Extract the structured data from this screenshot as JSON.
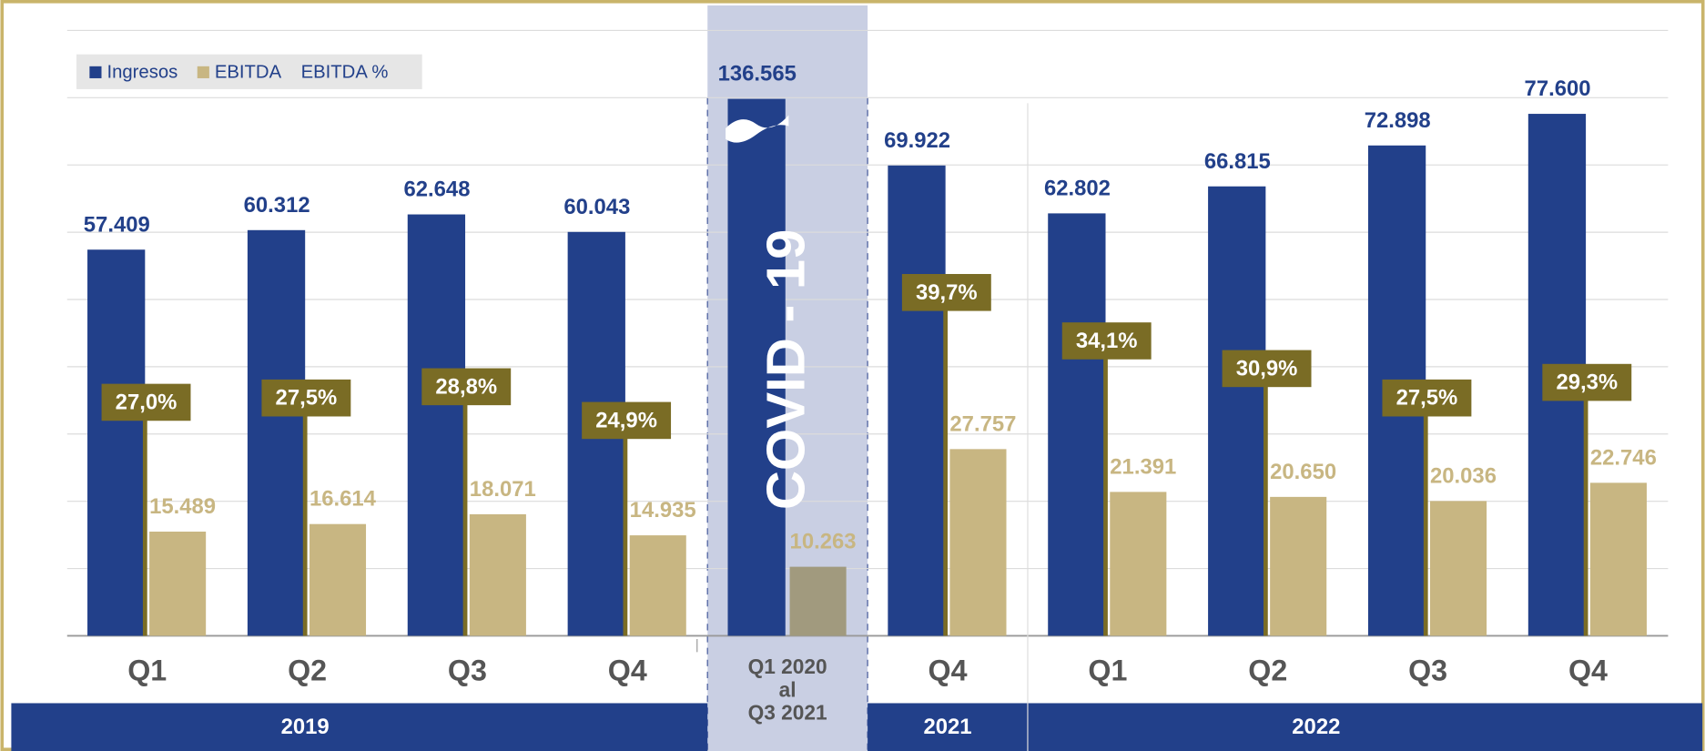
{
  "chart_data": {
    "type": "bar",
    "categories": [
      "Q1",
      "Q2",
      "Q3",
      "Q4",
      "Q1 2020\nal\nQ3 2021",
      "Q4",
      "Q1",
      "Q2",
      "Q3",
      "Q4"
    ],
    "groups": [
      {
        "label": "2019",
        "start": 0,
        "end": 3
      },
      {
        "label": "2021",
        "start": 5,
        "end": 5
      },
      {
        "label": "2022",
        "start": 6,
        "end": 9
      }
    ],
    "highlight": {
      "index": 4,
      "annotation": "COVID - 19",
      "color": "#c9cfe3"
    },
    "series": [
      {
        "name": "Ingresos",
        "color": "#22408a",
        "values": [
          57409,
          60312,
          62648,
          60043,
          136565,
          69922,
          62802,
          66815,
          72898,
          77600
        ],
        "value_labels": [
          "57.409",
          "60.312",
          "62.648",
          "60.043",
          "136.565",
          "69.922",
          "62.802",
          "66.815",
          "72.898",
          "77.600"
        ]
      },
      {
        "name": "EBITDA",
        "color": "#c8b682",
        "values": [
          15489,
          16614,
          18071,
          14935,
          10263,
          27757,
          21391,
          20650,
          20036,
          22746
        ],
        "value_labels": [
          "15.489",
          "16.614",
          "18.071",
          "14.935",
          "10.263",
          "27.757",
          "21.391",
          "20.650",
          "20.036",
          "22.746"
        ]
      },
      {
        "name": "EBITDA %",
        "color": "#7a6c25",
        "axis": "y2",
        "values": [
          27.0,
          27.5,
          28.8,
          24.9,
          null,
          39.7,
          34.1,
          30.9,
          27.5,
          29.3
        ],
        "value_labels": [
          "27,0%",
          "27,5%",
          "28,8%",
          "24,9%",
          null,
          "39,7%",
          "34,1%",
          "30,9%",
          "27,5%",
          "29,3%"
        ]
      }
    ],
    "ylim": [
      0,
      90000
    ],
    "yticks": [
      0,
      10000,
      20000,
      30000,
      40000,
      50000,
      60000,
      70000,
      80000,
      90000
    ],
    "y2lim": [
      0,
      70
    ],
    "grid": true,
    "legend": "top-left"
  }
}
